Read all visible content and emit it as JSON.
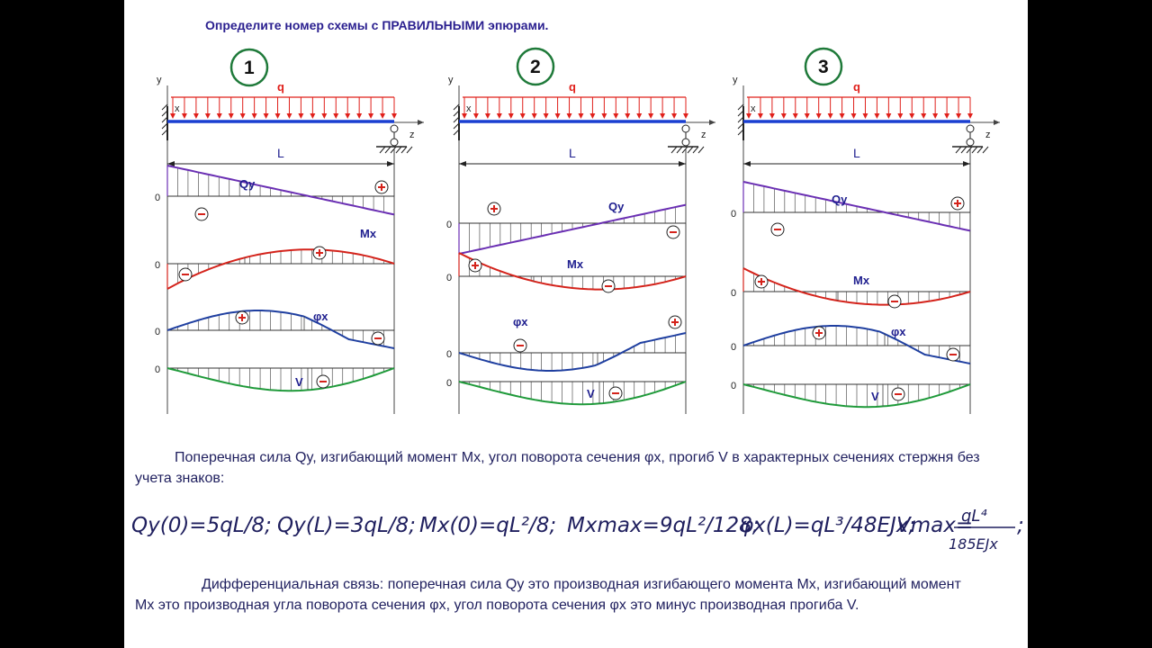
{
  "title": {
    "prefix": "Определите номер схемы с ",
    "bold": "ПРАВИЛЬНЫМИ",
    "suffix": " эпюрами."
  },
  "schemes": [
    {
      "number": "1"
    },
    {
      "number": "2"
    },
    {
      "number": "3"
    }
  ],
  "labels": {
    "q": "q",
    "x": "x",
    "y": "y",
    "z": "z",
    "L": "L",
    "Qy": "Qy",
    "Mx": "Mx",
    "phi": "φx",
    "V": "V",
    "zero": "0",
    "plus": "+",
    "minus": "−"
  },
  "text1": "Поперечная сила Qy, изгибающий момент Mx, угол поворота сечения φx, прогиб V в характерных сечениях стержня без учета знаков:",
  "formula": {
    "f1": "Qy(0)=5qL/8;",
    "f2": "Qy(L)=3qL/8;",
    "f3": "Mx(0)=qL²/8;",
    "f4": "Mxmax=9qL²/128;",
    "f5": "φx(L)=qL³/48EJx;",
    "f6a": "Vmax=",
    "f6num": "qL⁴",
    "f6den": "185EJx",
    "f6end": ";"
  },
  "text2": "Дифференциальная связь: поперечная сила Qy это производная изгибающего момента Mx, изгибающий момент Mx это производная угла поворота сечения φx, угол поворота сечения φx это минус производная прогиба V.",
  "colors": {
    "beam": "#1a3fd1",
    "load": "#e0201b",
    "circle": "#1f7a3a",
    "Qy": "#6a2fb3",
    "Mx": "#d4231b",
    "phi": "#1f3fa0",
    "V": "#1f9a3a",
    "text": "#1f1f5e"
  }
}
